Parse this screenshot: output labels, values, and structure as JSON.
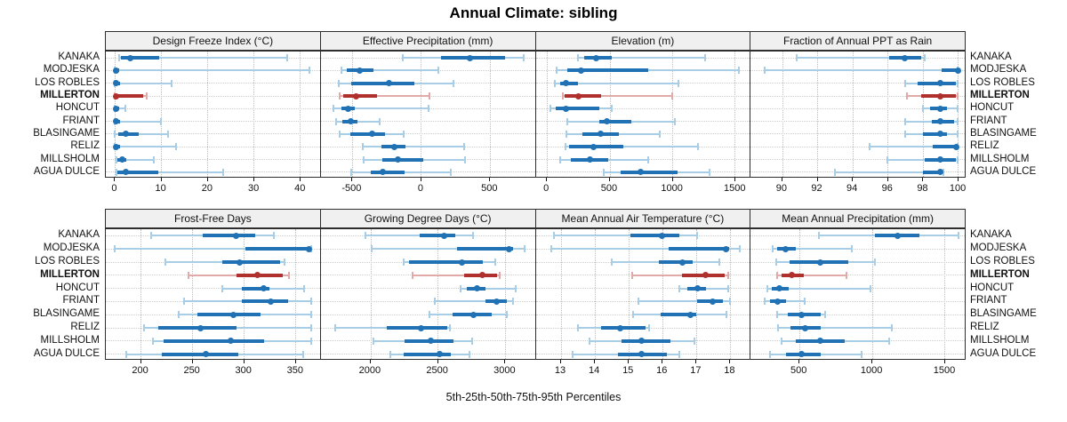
{
  "title": "Annual Climate: sibling",
  "caption": "5th-25th-50th-75th-95th Percentiles",
  "highlight_site": "MILLERTON",
  "sites": [
    "KANAKA",
    "MODJESKA",
    "LOS ROBLES",
    "MILLERTON",
    "HONCUT",
    "FRIANT",
    "BLASINGAME",
    "RELIZ",
    "MILLSHOLM",
    "AGUA DULCE"
  ],
  "colors": {
    "blue_dark": "#2171b5",
    "blue_light": "#a8cde6",
    "red_dark": "#b0302e",
    "red_light": "#e2a9a9",
    "strip_bg": "#f0f0f0",
    "panel_border": "#2e2e2e",
    "grid": "#c9c9c9"
  },
  "percentile_labels": [
    "5th",
    "25th",
    "50th",
    "75th",
    "95th"
  ],
  "chart_data": [
    {
      "type": "dot-interval",
      "title": "Design Freeze Index (°C)",
      "xlim": [
        -2,
        44.3
      ],
      "ticks": [
        0,
        10,
        20,
        30,
        40
      ],
      "series": [
        {
          "name": "KANAKA",
          "values": [
            0.9,
            1.3,
            3.3,
            9.5,
            37.3
          ]
        },
        {
          "name": "MODJESKA",
          "values": [
            0,
            0,
            0.3,
            0.8,
            42
          ]
        },
        {
          "name": "LOS ROBLES",
          "values": [
            0,
            0,
            0.3,
            1,
            12.2
          ]
        },
        {
          "name": "MILLERTON",
          "values": [
            0,
            0,
            0.3,
            6,
            6.8
          ]
        },
        {
          "name": "HONCUT",
          "values": [
            0,
            0,
            0.2,
            0.8,
            2.3
          ]
        },
        {
          "name": "FRIANT",
          "values": [
            0,
            0,
            0.3,
            1,
            10
          ]
        },
        {
          "name": "BLASINGAME",
          "values": [
            0,
            0.7,
            2.3,
            5.2,
            11.5
          ]
        },
        {
          "name": "RELIZ",
          "values": [
            0,
            0,
            0.3,
            1,
            13.2
          ]
        },
        {
          "name": "MILLSHOLM",
          "values": [
            0.3,
            0.5,
            1.5,
            2.5,
            8.3
          ]
        },
        {
          "name": "AGUA DULCE",
          "values": [
            0.3,
            0.5,
            2.4,
            9.3,
            23.4
          ]
        }
      ]
    },
    {
      "type": "dot-interval",
      "title": "Effective Precipitation (mm)",
      "xlim": [
        -730,
        830
      ],
      "ticks": [
        -500,
        0,
        500
      ],
      "series": [
        {
          "name": "KANAKA",
          "values": [
            -130,
            145,
            355,
            610,
            750
          ]
        },
        {
          "name": "MODJESKA",
          "values": [
            -580,
            -540,
            -445,
            -345,
            130
          ]
        },
        {
          "name": "LOS ROBLES",
          "values": [
            -600,
            -505,
            -235,
            -45,
            235
          ]
        },
        {
          "name": "MILLERTON",
          "values": [
            -590,
            -565,
            -475,
            -320,
            60
          ]
        },
        {
          "name": "HONCUT",
          "values": [
            -635,
            -580,
            -530,
            -485,
            55
          ]
        },
        {
          "name": "FRIANT",
          "values": [
            -620,
            -570,
            -510,
            -460,
            -300
          ]
        },
        {
          "name": "BLASINGAME",
          "values": [
            -595,
            -515,
            -355,
            -260,
            -125
          ]
        },
        {
          "name": "RELIZ",
          "values": [
            -425,
            -290,
            -195,
            -110,
            315
          ]
        },
        {
          "name": "MILLSHOLM",
          "values": [
            -420,
            -280,
            -170,
            20,
            320
          ]
        },
        {
          "name": "AGUA DULCE",
          "values": [
            -505,
            -365,
            -280,
            -120,
            215
          ]
        }
      ]
    },
    {
      "type": "dot-interval",
      "title": "Elevation (m)",
      "xlim": [
        -90,
        1620
      ],
      "ticks": [
        0,
        500,
        1000,
        1500
      ],
      "series": [
        {
          "name": "KANAKA",
          "values": [
            245,
            295,
            395,
            520,
            1265
          ]
        },
        {
          "name": "MODJESKA",
          "values": [
            80,
            165,
            275,
            810,
            1535
          ]
        },
        {
          "name": "LOS ROBLES",
          "values": [
            60,
            105,
            150,
            245,
            1050
          ]
        },
        {
          "name": "MILLERTON",
          "values": [
            125,
            140,
            250,
            430,
            1000
          ]
        },
        {
          "name": "HONCUT",
          "values": [
            30,
            70,
            150,
            420,
            515
          ]
        },
        {
          "name": "FRIANT",
          "values": [
            165,
            420,
            480,
            675,
            1025
          ]
        },
        {
          "name": "BLASINGAME",
          "values": [
            155,
            280,
            430,
            575,
            900
          ]
        },
        {
          "name": "RELIZ",
          "values": [
            150,
            175,
            375,
            610,
            1205
          ]
        },
        {
          "name": "MILLSHOLM",
          "values": [
            105,
            190,
            345,
            490,
            810
          ]
        },
        {
          "name": "AGUA DULCE",
          "values": [
            455,
            590,
            750,
            1045,
            1300
          ]
        }
      ]
    },
    {
      "type": "dot-interval",
      "title": "Fraction of Annual PPT as Rain",
      "xlim": [
        88.2,
        100.4
      ],
      "ticks": [
        90,
        92,
        94,
        96,
        98,
        100
      ],
      "series": [
        {
          "name": "KANAKA",
          "values": [
            90.8,
            96.1,
            97.0,
            97.9,
            98.1
          ]
        },
        {
          "name": "MODJESKA",
          "values": [
            89.0,
            99.1,
            100,
            100,
            100
          ]
        },
        {
          "name": "LOS ROBLES",
          "values": [
            97.0,
            97.7,
            99.0,
            99.9,
            100
          ]
        },
        {
          "name": "MILLERTON",
          "values": [
            97.1,
            97.9,
            99.0,
            99.9,
            100
          ]
        },
        {
          "name": "HONCUT",
          "values": [
            98.0,
            98.4,
            99.0,
            99.4,
            100
          ]
        },
        {
          "name": "FRIANT",
          "values": [
            97.0,
            98.5,
            99.0,
            99.8,
            100
          ]
        },
        {
          "name": "BLASINGAME",
          "values": [
            97.0,
            98.0,
            99.0,
            99.4,
            100
          ]
        },
        {
          "name": "RELIZ",
          "values": [
            95.0,
            98.6,
            99.9,
            100,
            100
          ]
        },
        {
          "name": "MILLSHOLM",
          "values": [
            96.0,
            98.1,
            99.0,
            99.9,
            100
          ]
        },
        {
          "name": "AGUA DULCE",
          "values": [
            93.0,
            98.0,
            99.0,
            99.1,
            99.2
          ]
        }
      ]
    },
    {
      "type": "dot-interval",
      "title": "Frost-Free Days",
      "xlim": [
        166,
        374
      ],
      "ticks": [
        200,
        250,
        300,
        350
      ],
      "series": [
        {
          "name": "KANAKA",
          "values": [
            210,
            260,
            293,
            311,
            329
          ]
        },
        {
          "name": "MODJESKA",
          "values": [
            175,
            302,
            363,
            364,
            366
          ]
        },
        {
          "name": "LOS ROBLES",
          "values": [
            224,
            279,
            296,
            335,
            340
          ]
        },
        {
          "name": "MILLERTON",
          "values": [
            246,
            293,
            313,
            338,
            344
          ]
        },
        {
          "name": "HONCUT",
          "values": [
            279,
            298,
            319,
            325,
            359
          ]
        },
        {
          "name": "FRIANT",
          "values": [
            242,
            298,
            326,
            343,
            366
          ]
        },
        {
          "name": "BLASINGAME",
          "values": [
            237,
            255,
            290,
            316,
            366
          ]
        },
        {
          "name": "RELIZ",
          "values": [
            203,
            217,
            258,
            293,
            366
          ]
        },
        {
          "name": "MILLSHOLM",
          "values": [
            212,
            222,
            287,
            320,
            366
          ]
        },
        {
          "name": "AGUA DULCE",
          "values": [
            186,
            220,
            263,
            295,
            358
          ]
        }
      ]
    },
    {
      "type": "dot-interval",
      "title": "Growing Degree Days (°C)",
      "xlim": [
        1630,
        3225
      ],
      "ticks": [
        2000,
        2500,
        3000
      ],
      "series": [
        {
          "name": "KANAKA",
          "values": [
            1960,
            2370,
            2550,
            2630,
            2765
          ]
        },
        {
          "name": "MODJESKA",
          "values": [
            2010,
            2645,
            3030,
            3060,
            3150
          ]
        },
        {
          "name": "LOS ROBLES",
          "values": [
            2245,
            2290,
            2685,
            2840,
            2930
          ]
        },
        {
          "name": "MILLERTON",
          "values": [
            2315,
            2700,
            2835,
            2945,
            2965
          ]
        },
        {
          "name": "HONCUT",
          "values": [
            2670,
            2720,
            2795,
            2860,
            3080
          ]
        },
        {
          "name": "FRIANT",
          "values": [
            2480,
            2860,
            2940,
            3015,
            3060
          ]
        },
        {
          "name": "BLASINGAME",
          "values": [
            2440,
            2610,
            2770,
            2905,
            3015
          ]
        },
        {
          "name": "RELIZ",
          "values": [
            1735,
            2125,
            2380,
            2575,
            2590
          ]
        },
        {
          "name": "MILLSHOLM",
          "values": [
            2020,
            2255,
            2450,
            2620,
            2760
          ]
        },
        {
          "name": "AGUA DULCE",
          "values": [
            2150,
            2245,
            2515,
            2600,
            2735
          ]
        }
      ]
    },
    {
      "type": "dot-interval",
      "title": "Mean Annual Air Temperature (°C)",
      "xlim": [
        12.25,
        18.6
      ],
      "ticks": [
        13,
        14,
        15,
        16,
        17,
        18
      ],
      "series": [
        {
          "name": "KANAKA",
          "values": [
            12.8,
            15.05,
            16.0,
            16.5,
            17.05
          ]
        },
        {
          "name": "MODJESKA",
          "values": [
            12.7,
            16.2,
            17.9,
            18.0,
            18.3
          ]
        },
        {
          "name": "LOS ROBLES",
          "values": [
            14.5,
            15.9,
            16.6,
            16.9,
            17.7
          ]
        },
        {
          "name": "MILLERTON",
          "values": [
            15.1,
            16.6,
            17.3,
            17.85,
            17.95
          ]
        },
        {
          "name": "HONCUT",
          "values": [
            16.5,
            16.75,
            17.05,
            17.3,
            17.95
          ]
        },
        {
          "name": "FRIANT",
          "values": [
            15.3,
            17.05,
            17.5,
            17.8,
            18.0
          ]
        },
        {
          "name": "BLASINGAME",
          "values": [
            15.15,
            15.95,
            16.85,
            17.0,
            17.9
          ]
        },
        {
          "name": "RELIZ",
          "values": [
            13.5,
            14.2,
            14.75,
            15.5,
            15.6
          ]
        },
        {
          "name": "MILLSHOLM",
          "values": [
            13.85,
            14.8,
            15.4,
            16.25,
            16.95
          ]
        },
        {
          "name": "AGUA DULCE",
          "values": [
            13.35,
            14.7,
            15.4,
            16.15,
            16.5
          ]
        }
      ]
    },
    {
      "type": "dot-interval",
      "title": "Mean Annual Precipitation (mm)",
      "xlim": [
        165,
        1640
      ],
      "ticks": [
        500,
        1000,
        1500
      ],
      "series": [
        {
          "name": "KANAKA",
          "values": [
            635,
            1020,
            1180,
            1330,
            1600
          ]
        },
        {
          "name": "MODJESKA",
          "values": [
            315,
            350,
            405,
            475,
            860
          ]
        },
        {
          "name": "LOS ROBLES",
          "values": [
            340,
            430,
            645,
            835,
            1020
          ]
        },
        {
          "name": "MILLERTON",
          "values": [
            350,
            380,
            450,
            530,
            825
          ]
        },
        {
          "name": "HONCUT",
          "values": [
            280,
            310,
            360,
            430,
            990
          ]
        },
        {
          "name": "FRIANT",
          "values": [
            260,
            297,
            350,
            410,
            540
          ]
        },
        {
          "name": "BLASINGAME",
          "values": [
            345,
            420,
            515,
            650,
            680
          ]
        },
        {
          "name": "RELIZ",
          "values": [
            355,
            440,
            540,
            650,
            1140
          ]
        },
        {
          "name": "MILLSHOLM",
          "values": [
            380,
            475,
            645,
            815,
            1120
          ]
        },
        {
          "name": "AGUA DULCE",
          "values": [
            297,
            410,
            515,
            650,
            930
          ]
        }
      ]
    }
  ]
}
